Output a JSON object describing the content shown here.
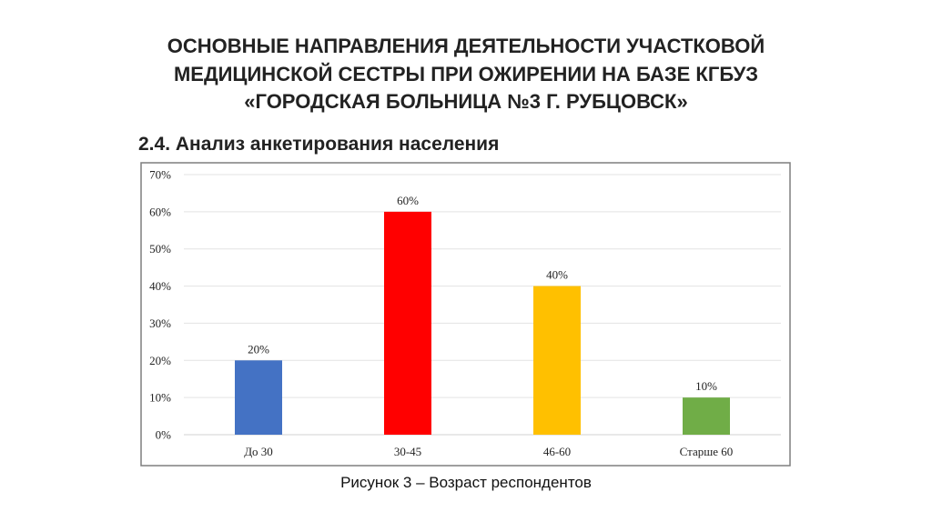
{
  "slide": {
    "title_lines": [
      "ОСНОВНЫЕ НАПРАВЛЕНИЯ ДЕЯТЕЛЬНОСТИ УЧАСТКОВОЙ",
      "МЕДИЦИНСКОЙ СЕСТРЫ ПРИ ОЖИРЕНИИ НА БАЗЕ КГБУЗ",
      "«ГОРОДСКАЯ БОЛЬНИЦА №3 Г. РУБЦОВСК»"
    ],
    "subtitle": "2.4. Анализ анкетирования населения",
    "caption": "Рисунок 3 – Возраст респондентов"
  },
  "chart_data": {
    "type": "bar",
    "categories": [
      "До 30",
      "30-45",
      "46-60",
      "Старше 60"
    ],
    "values": [
      20,
      60,
      40,
      10
    ],
    "data_labels": [
      "20%",
      "60%",
      "40%",
      "10%"
    ],
    "colors": [
      "#4472C4",
      "#FF0000",
      "#FFC000",
      "#70AD47"
    ],
    "ylim": [
      0,
      70
    ],
    "yticks": [
      "0%",
      "10%",
      "20%",
      "30%",
      "40%",
      "50%",
      "60%",
      "70%"
    ],
    "title": "",
    "xlabel": "",
    "ylabel": "",
    "grid": true,
    "legend": "none"
  }
}
